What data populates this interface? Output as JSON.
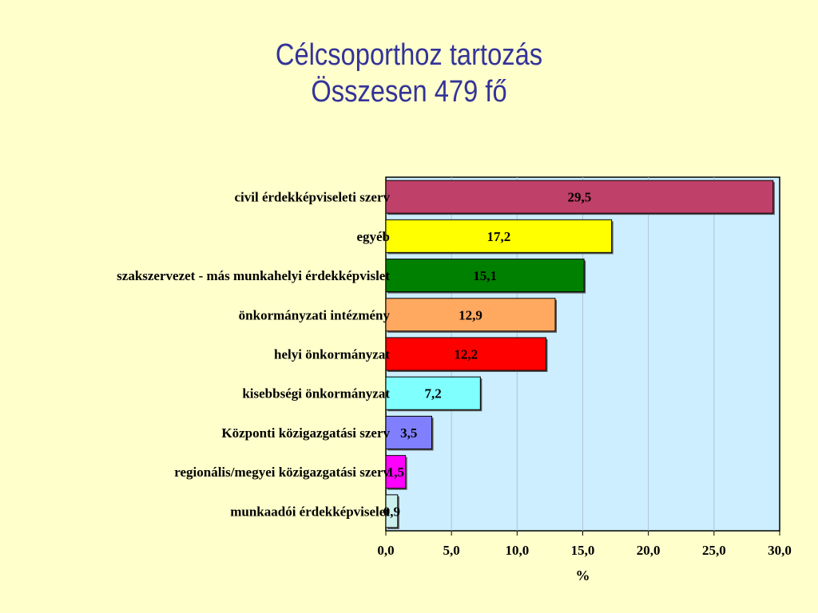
{
  "slide": {
    "background": "#ffffcc",
    "title_line1": "Célcsoporthoz tartozás",
    "title_line2": "Összesen 479 fő",
    "title_color": "#333399"
  },
  "chart_data": {
    "type": "bar",
    "orientation": "horizontal",
    "plot_background": "#cceeff",
    "categories": [
      "civil érdekképviseleti szerv",
      "egyéb",
      "szakszervezet - más munkahelyi érdekképvislet",
      "önkormányzati intézmény",
      "helyi önkormányzat",
      "kisebbségi önkormányzat",
      "Központi közigazgatási szerv",
      "regionális/megyei közigazgatási szerv",
      "munkaadói érdekképviselet"
    ],
    "values": [
      29.5,
      17.2,
      15.1,
      12.9,
      12.2,
      7.2,
      3.5,
      1.5,
      0.9
    ],
    "value_labels": [
      "29,5",
      "17,2",
      "15,1",
      "12,9",
      "12,2",
      "7,2",
      "3,5",
      "1,5",
      "0,9"
    ],
    "colors": [
      "#bf4068",
      "#ffff00",
      "#008000",
      "#ffa860",
      "#ff0000",
      "#80ffff",
      "#8080ff",
      "#ff00ff",
      "#ccf0ee"
    ],
    "xlim": [
      0,
      30
    ],
    "xticks": [
      0,
      5,
      10,
      15,
      20,
      25,
      30
    ],
    "xtick_labels": [
      "0,0",
      "5,0",
      "10,0",
      "15,0",
      "20,0",
      "25,0",
      "30,0"
    ],
    "xlabel": "%",
    "ylabel": "",
    "grid": true
  }
}
